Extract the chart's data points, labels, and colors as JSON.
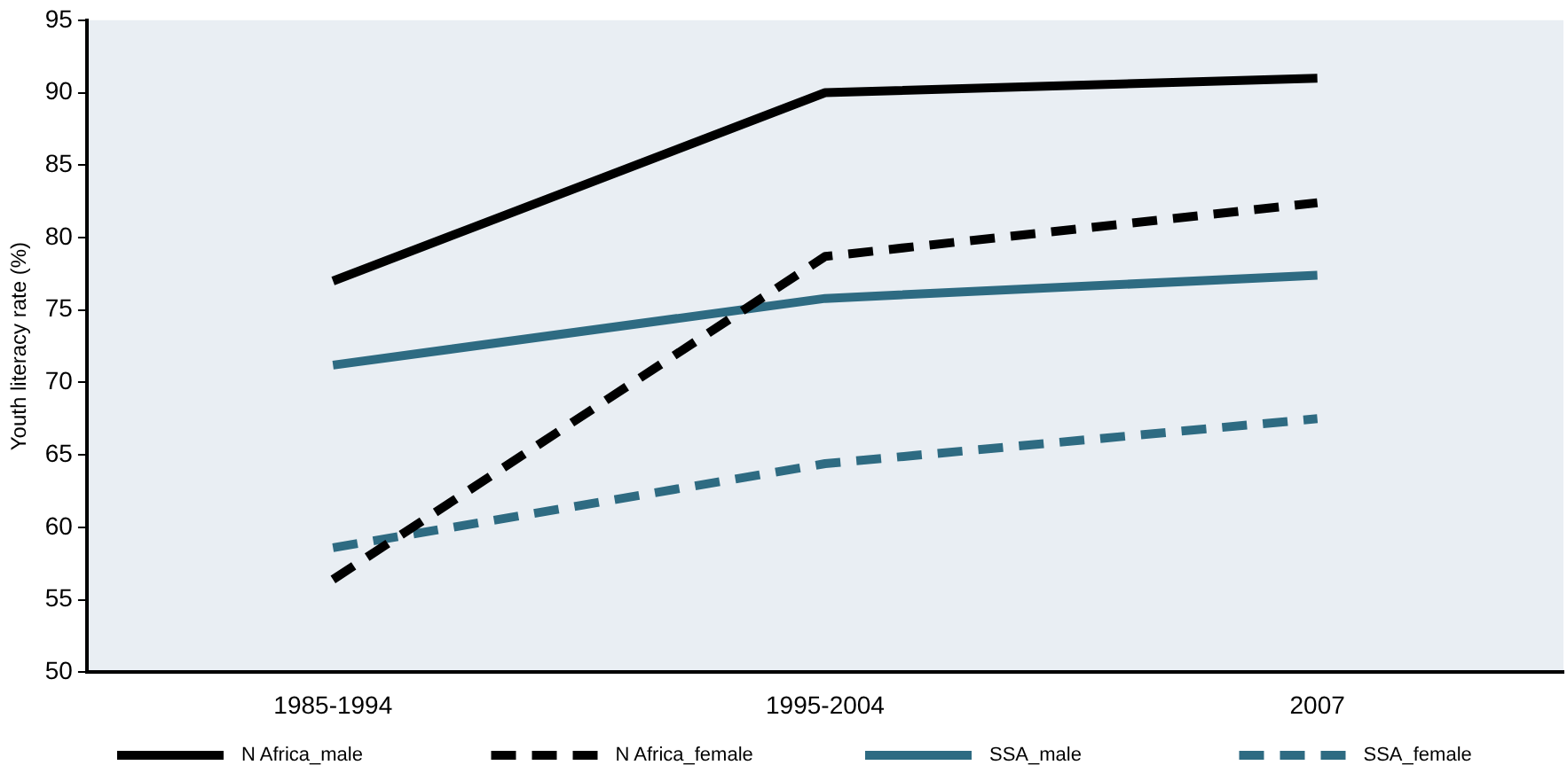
{
  "chart_data": {
    "type": "line",
    "ylabel": "Youth literacy rate (%)",
    "categories": [
      "1985-1994",
      "1995-2004",
      "2007"
    ],
    "series": [
      {
        "name": "N Africa_male",
        "color": "#000000",
        "line_style": "solid",
        "values": [
          77.0,
          90.0,
          91.0
        ]
      },
      {
        "name": "N Africa_female",
        "color": "#000000",
        "line_style": "dashed",
        "values": [
          56.4,
          78.7,
          82.4
        ]
      },
      {
        "name": "SSA_male",
        "color": "#2e6b82",
        "line_style": "solid",
        "values": [
          71.2,
          75.8,
          77.4
        ]
      },
      {
        "name": "SSA_female",
        "color": "#2e6b82",
        "line_style": "dashed",
        "values": [
          58.6,
          64.4,
          67.5
        ]
      }
    ],
    "ylim": [
      50,
      95
    ],
    "yticks": [
      50,
      55,
      60,
      65,
      70,
      75,
      80,
      85,
      90,
      95
    ],
    "grid": false,
    "legend": "bottom",
    "marker": "none"
  }
}
